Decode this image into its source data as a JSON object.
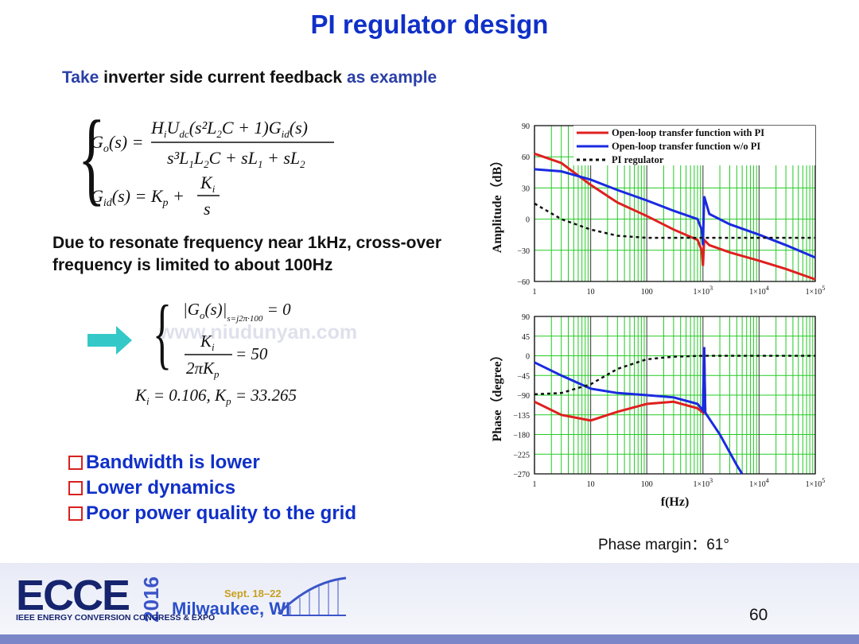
{
  "slide": {
    "title": "PI regulator design",
    "subtitle_blue_1": "Take",
    "subtitle_black": "inverter side current feedback",
    "subtitle_blue_2": "as example",
    "paragraph": "Due to resonate frequency near 1kHz, cross-over frequency is limited to about 100Hz",
    "equations": {
      "go_lhs": "G",
      "result": "K",
      "result_text": "= 0.106, K",
      "result_value": "= 33.265"
    },
    "bullets": [
      "Bandwidth is lower",
      "Lower dynamics",
      "Poor power quality to the grid"
    ],
    "phase_margin": "Phase margin：61°",
    "page_number": "60",
    "watermark": "www.niudunyan.com"
  },
  "footer": {
    "logo": "ECCE",
    "year": "2016",
    "org": "IEEE ENERGY CONVERSION CONGRESS & EXPO",
    "dates": "Sept. 18–22",
    "city": "Milwaukee, WI"
  },
  "colors": {
    "title": "#1030c8",
    "bullet": "#1030c8",
    "grid": "#22cc22",
    "red": "#e02020",
    "blue": "#1a2ae0"
  },
  "chart_data": [
    {
      "type": "line",
      "ylabel": "Amplitude（dB）",
      "x_scale": "log",
      "xlim": [
        1,
        100000
      ],
      "ylim": [
        -60,
        90
      ],
      "yticks": [
        "90",
        "60",
        "30",
        "0",
        "−30",
        "−60"
      ],
      "xticks": [
        "1",
        "10",
        "100",
        "1×10",
        "1×10",
        "1×10"
      ],
      "xtick_exp": [
        "",
        "",
        "",
        "3",
        "4",
        "5"
      ],
      "series": [
        {
          "name": "Open-loop transfer function with PI",
          "color": "#e02020",
          "x": [
            1,
            3,
            10,
            30,
            100,
            300,
            800,
            950,
            1000,
            1050,
            1300,
            3000,
            10000,
            30000,
            100000
          ],
          "y": [
            63,
            54,
            33,
            16,
            3,
            -10,
            -20,
            -30,
            -45,
            -20,
            -25,
            -32,
            -40,
            -48,
            -58
          ]
        },
        {
          "name": "Open-loop transfer function w/o PI",
          "color": "#1a2ae0",
          "x": [
            1,
            3,
            10,
            30,
            100,
            300,
            800,
            950,
            1000,
            1050,
            1300,
            3000,
            10000,
            30000,
            100000
          ],
          "y": [
            48,
            46,
            38,
            28,
            18,
            8,
            0,
            -10,
            -25,
            22,
            5,
            -5,
            -15,
            -25,
            -37
          ]
        },
        {
          "name": "PI regulator",
          "color": "#111111",
          "x": [
            1,
            3,
            10,
            30,
            100,
            300,
            1000,
            10000,
            100000
          ],
          "y": [
            15,
            0,
            -10,
            -16,
            -18,
            -18,
            -18,
            -18,
            -18
          ]
        }
      ]
    },
    {
      "type": "line",
      "ylabel": "Phase（degree）",
      "xlabel": "f(Hz)",
      "x_scale": "log",
      "xlim": [
        1,
        100000
      ],
      "ylim": [
        -270,
        90
      ],
      "yticks": [
        "90",
        "45",
        "0",
        "−45",
        "−90",
        "−135",
        "−180",
        "−225",
        "−270"
      ],
      "xticks": [
        "1",
        "10",
        "100",
        "1×10",
        "1×10",
        "1×10"
      ],
      "xtick_exp": [
        "",
        "",
        "",
        "3",
        "4",
        "5"
      ],
      "series": [
        {
          "name": "Open-loop transfer function with PI",
          "color": "#e02020",
          "x": [
            1,
            3,
            10,
            30,
            100,
            300,
            800,
            1000,
            1050,
            1100
          ],
          "y": [
            -105,
            -135,
            -148,
            -128,
            -110,
            -105,
            -120,
            -130,
            20,
            -130
          ]
        },
        {
          "name": "Open-loop transfer function w/o PI",
          "color": "#1a2ae0",
          "x": [
            1,
            3,
            10,
            30,
            100,
            300,
            800,
            1000,
            1050,
            1100,
            2000,
            4000,
            5000
          ],
          "y": [
            -15,
            -45,
            -75,
            -85,
            -90,
            -95,
            -110,
            -125,
            20,
            -130,
            -180,
            -250,
            -270
          ]
        },
        {
          "name": "PI regulator",
          "color": "#111111",
          "x": [
            1,
            3,
            10,
            30,
            100,
            300,
            1000,
            10000,
            100000
          ],
          "y": [
            -88,
            -85,
            -65,
            -30,
            -8,
            -2,
            0,
            0,
            0
          ]
        }
      ]
    }
  ]
}
